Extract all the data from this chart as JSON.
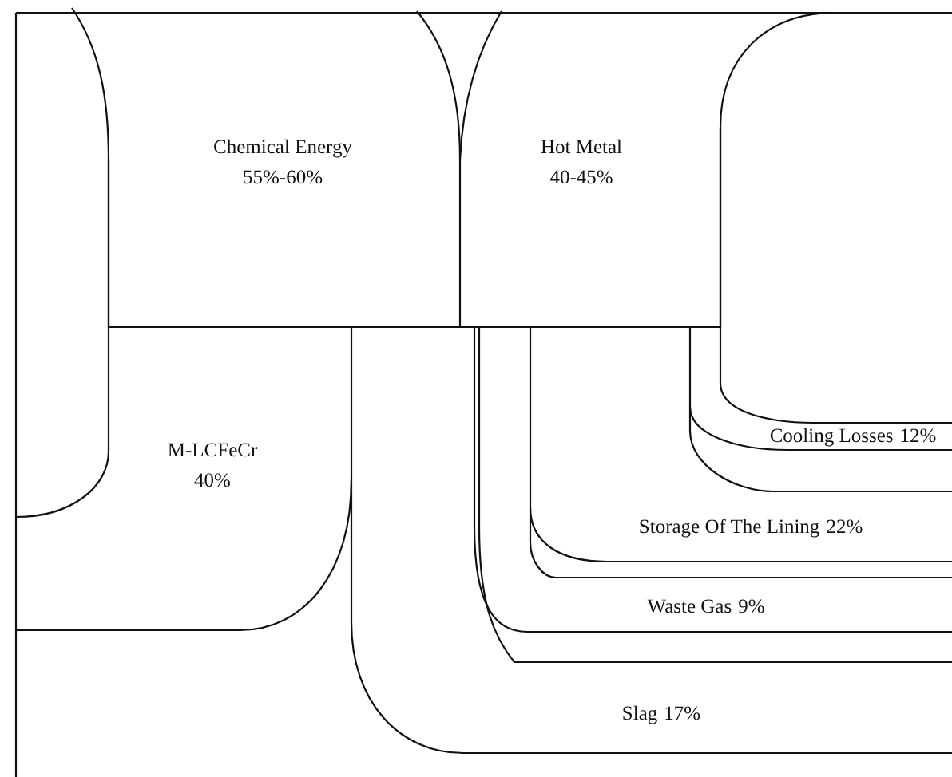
{
  "chart_data": {
    "type": "other",
    "categories": [
      "Chemical Energy",
      "Hot Metal",
      "M-LCFeCr",
      "Cooling Losses",
      "Storage Of The Lining",
      "Waste Gas",
      "Slag"
    ],
    "values": [
      null,
      null,
      40,
      12,
      22,
      9,
      17
    ],
    "value_labels": [
      "55%-60%",
      "40-45%",
      "40%",
      "12%",
      "22%",
      "9%",
      "17%"
    ]
  }
}
